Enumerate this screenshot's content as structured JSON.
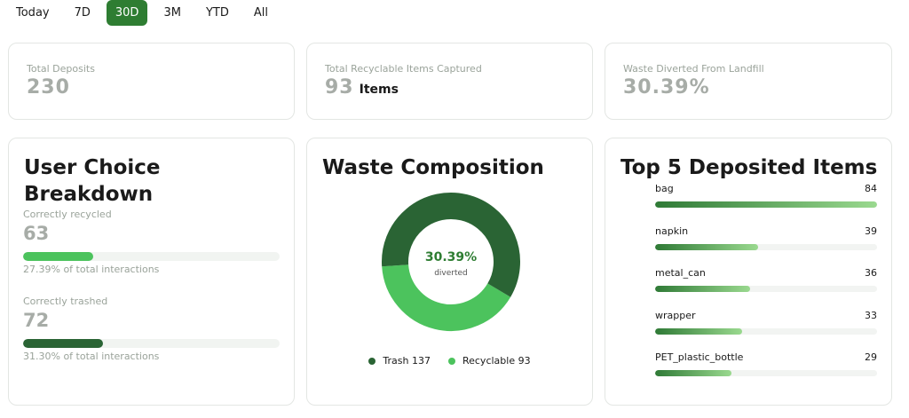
{
  "time_range": {
    "tabs": [
      {
        "label": "Today",
        "active": false
      },
      {
        "label": "7D",
        "active": false
      },
      {
        "label": "30D",
        "active": true
      },
      {
        "label": "3M",
        "active": false
      },
      {
        "label": "YTD",
        "active": false
      },
      {
        "label": "All",
        "active": false
      }
    ]
  },
  "stats": [
    {
      "label": "Total Deposits",
      "value": "230",
      "unit": ""
    },
    {
      "label": "Total Recyclable Items Captured",
      "value": "93",
      "unit": "Items"
    },
    {
      "label": "Waste Diverted From Landfill",
      "value": "30.39%",
      "unit": ""
    }
  ],
  "user_choice": {
    "title": "User Choice Breakdown",
    "items": [
      {
        "label": "Correctly recycled",
        "value": "63",
        "note": "27.39% of total interactions",
        "fraction": 0.2739,
        "color": "#4cc35d"
      },
      {
        "label": "Correctly trashed",
        "value": "72",
        "note": "31.30% of total interactions",
        "fraction": 0.313,
        "color": "#2a6434"
      }
    ]
  },
  "waste_composition": {
    "title": "Waste Composition",
    "center_value": "30.39%",
    "center_label": "diverted",
    "legend": [
      {
        "label": "Trash 137",
        "color": "#2a6434"
      },
      {
        "label": "Recyclable 93",
        "color": "#4cc35d"
      }
    ]
  },
  "top_items": {
    "title": "Top 5 Deposited Items",
    "items": [
      {
        "name": "bag",
        "count": "84",
        "value": 84
      },
      {
        "name": "napkin",
        "count": "39",
        "value": 39
      },
      {
        "name": "metal_can",
        "count": "36",
        "value": 36
      },
      {
        "name": "wrapper",
        "count": "33",
        "value": 33
      },
      {
        "name": "PET_plastic_bottle",
        "count": "29",
        "value": 29
      }
    ]
  },
  "chart_data": [
    {
      "type": "pie",
      "categories": [
        "Trash",
        "Recyclable"
      ],
      "values": [
        137,
        93
      ],
      "title": "Waste Composition",
      "colors": [
        "#2a6434",
        "#4cc35d"
      ]
    },
    {
      "type": "bar",
      "categories": [
        "bag",
        "napkin",
        "metal_can",
        "wrapper",
        "PET_plastic_bottle"
      ],
      "values": [
        84,
        39,
        36,
        33,
        29
      ],
      "title": "Top 5 Deposited Items"
    }
  ]
}
